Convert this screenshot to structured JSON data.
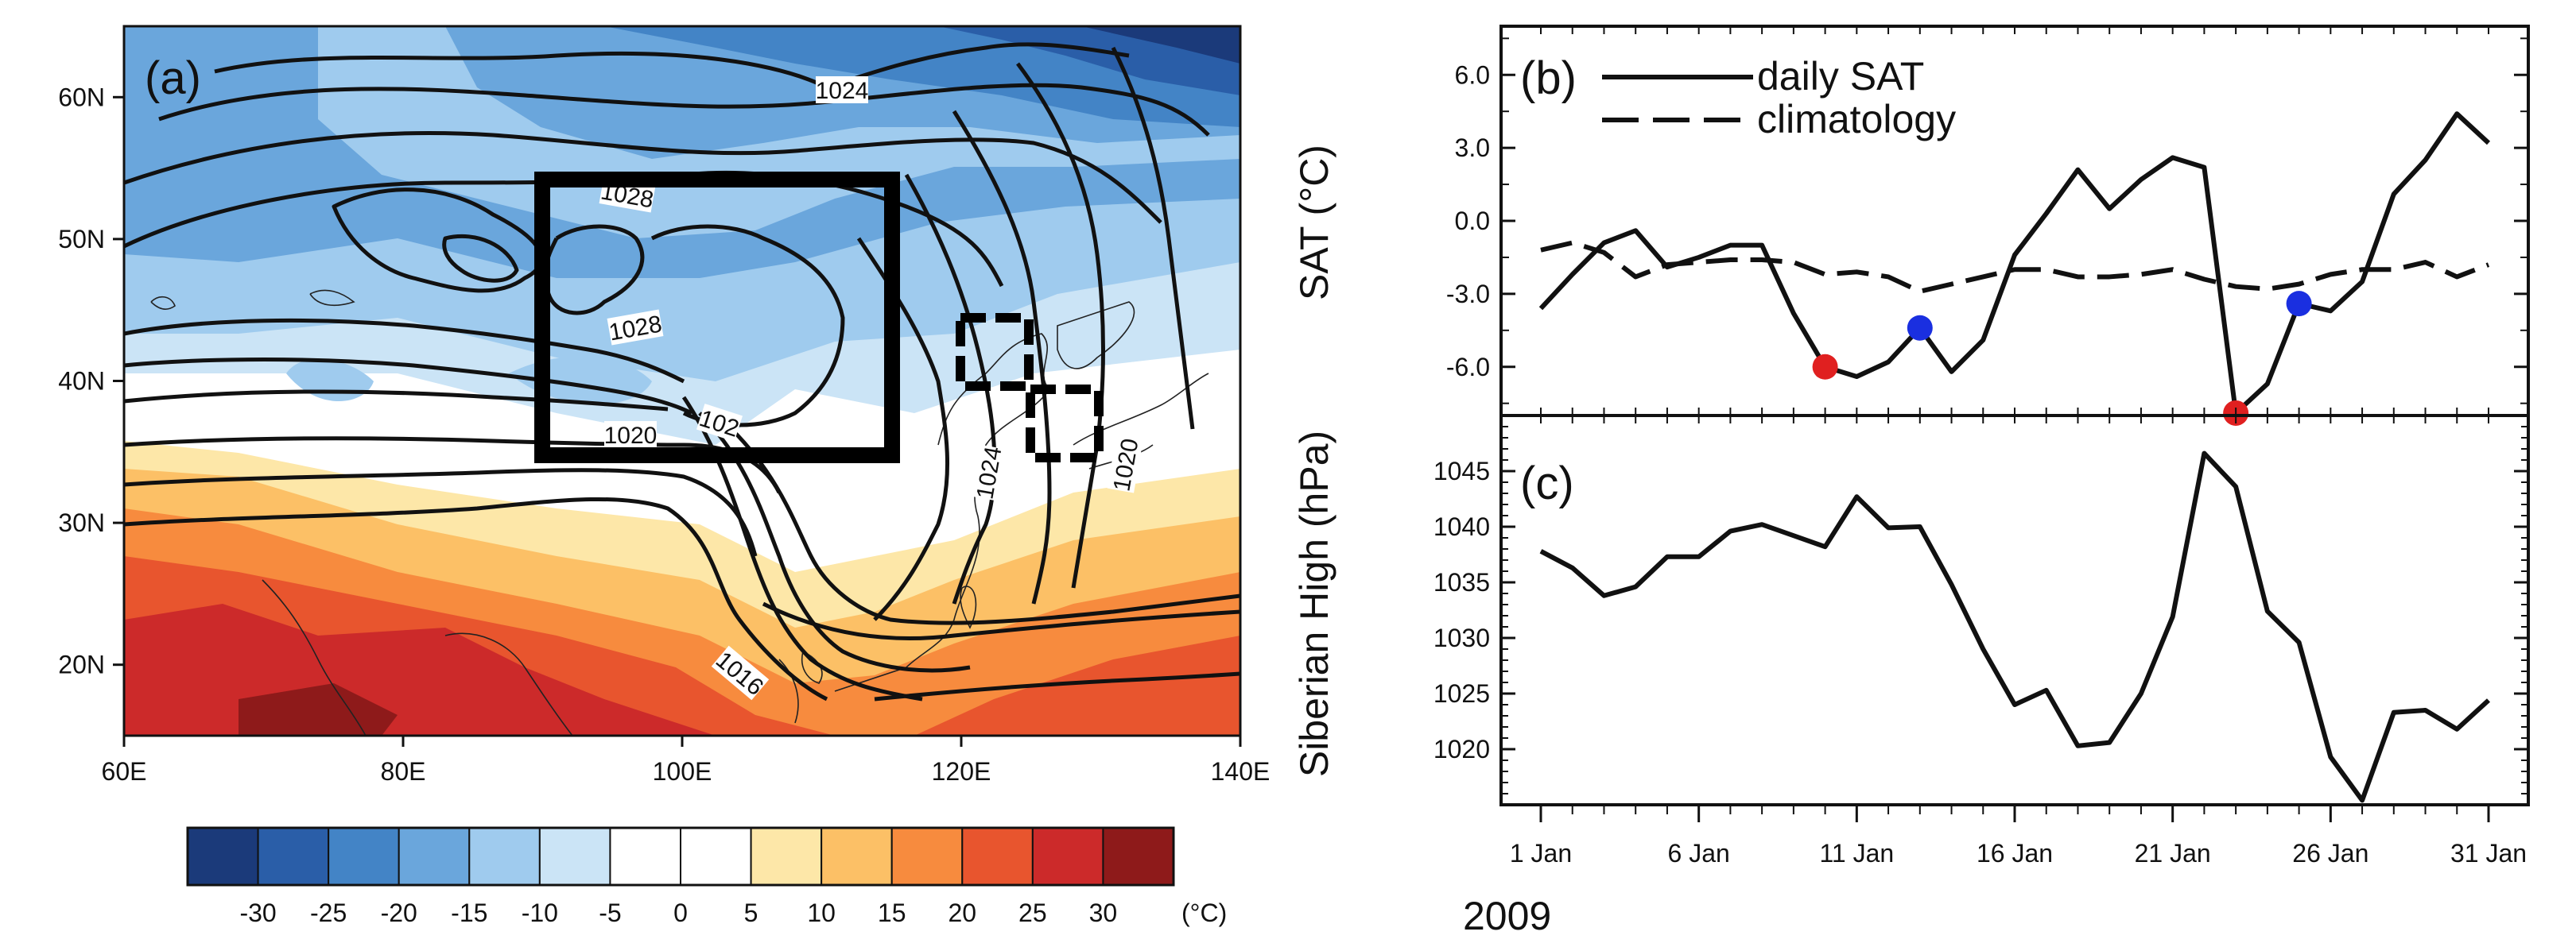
{
  "chart_data": [
    {
      "type": "heatmap",
      "panel_label": "(a)",
      "x_ticks": [
        "60E",
        "80E",
        "100E",
        "120E",
        "140E"
      ],
      "y_ticks": [
        "60N",
        "50N",
        "40N",
        "30N",
        "20N"
      ],
      "xlim": [
        60,
        140
      ],
      "ylim": [
        15,
        65
      ],
      "contour_labels": [
        "1024",
        "1028",
        "1028",
        "1020",
        "102",
        "1024",
        "1020",
        "1016"
      ],
      "colorbar": {
        "tick_labels": [
          "-30",
          "-25",
          "-20",
          "-15",
          "-10",
          "-5",
          "0",
          "5",
          "10",
          "15",
          "20",
          "25",
          "30"
        ],
        "unit": "(°C)",
        "colors": [
          "#1b3a7a",
          "#2a5ea8",
          "#4384c6",
          "#6aa6dc",
          "#9fcbee",
          "#cbe4f6",
          "#ffffff",
          "#ffffff",
          "#fde7a8",
          "#fcc066",
          "#f78b3e",
          "#e8552e",
          "#cc2a2a",
          "#8e1a1a"
        ]
      },
      "regions": [
        {
          "name": "main box",
          "lon": [
            90,
            115
          ],
          "lat": [
            35,
            55
          ],
          "style": "solid"
        },
        {
          "name": "box 2",
          "lon": [
            120,
            125
          ],
          "lat": [
            40,
            45
          ],
          "style": "dashed"
        },
        {
          "name": "box 3",
          "lon": [
            125,
            130
          ],
          "lat": [
            35,
            40
          ],
          "style": "dashed"
        }
      ]
    },
    {
      "type": "line",
      "panel_label": "(b)",
      "ylabel": "SAT (°C)",
      "y_ticks": [
        "6.0",
        "3.0",
        "0.0",
        "-3.0",
        "-6.0"
      ],
      "ylim": [
        -8,
        8
      ],
      "x": [
        1,
        2,
        3,
        4,
        5,
        6,
        7,
        8,
        9,
        10,
        11,
        12,
        13,
        14,
        15,
        16,
        17,
        18,
        19,
        20,
        21,
        22,
        23,
        24,
        25,
        26,
        27,
        28,
        29,
        30,
        31
      ],
      "series": [
        {
          "name": "daily SAT",
          "style": "solid",
          "values": [
            -3.6,
            -2.2,
            -0.9,
            -0.4,
            -1.9,
            -1.5,
            -1.0,
            -1.0,
            -3.8,
            -6.0,
            -6.4,
            -5.8,
            -4.4,
            -6.2,
            -4.9,
            -1.4,
            0.3,
            2.1,
            0.5,
            1.7,
            2.6,
            2.2,
            -7.9,
            -6.7,
            -3.4,
            -3.7,
            -2.5,
            1.1,
            2.5,
            4.4,
            3.2
          ]
        },
        {
          "name": "climatology",
          "style": "dashed",
          "values": [
            -1.2,
            -0.9,
            -1.3,
            -2.3,
            -1.8,
            -1.7,
            -1.6,
            -1.6,
            -1.7,
            -2.2,
            -2.1,
            -2.3,
            -2.9,
            -2.6,
            -2.3,
            -2.0,
            -2.0,
            -2.3,
            -2.3,
            -2.2,
            -2.0,
            -2.4,
            -2.7,
            -2.8,
            -2.6,
            -2.2,
            -2.0,
            -2.0,
            -1.7,
            -2.3,
            -1.8
          ]
        }
      ],
      "markers": [
        {
          "day": 10,
          "value": -6.0,
          "color": "#e02020"
        },
        {
          "day": 13,
          "value": -4.4,
          "color": "#1a2fe0"
        },
        {
          "day": 23,
          "value": -7.9,
          "color": "#e02020"
        },
        {
          "day": 25,
          "value": -3.4,
          "color": "#1a2fe0"
        }
      ]
    },
    {
      "type": "line",
      "panel_label": "(c)",
      "ylabel": "Siberian High (hPa)",
      "y_ticks": [
        "1045",
        "1040",
        "1035",
        "1030",
        "1025",
        "1020"
      ],
      "ylim": [
        1015,
        1050
      ],
      "x": [
        1,
        2,
        3,
        4,
        5,
        6,
        7,
        8,
        9,
        10,
        11,
        12,
        13,
        14,
        15,
        16,
        17,
        18,
        19,
        20,
        21,
        22,
        23,
        24,
        25,
        26,
        27,
        28,
        29,
        30,
        31
      ],
      "x_tick_labels": [
        "1 Jan",
        "6 Jan",
        "11 Jan",
        "16 Jan",
        "21 Jan",
        "26 Jan",
        "31 Jan"
      ],
      "x_tick_days": [
        1,
        6,
        11,
        16,
        21,
        26,
        31
      ],
      "year_label": "2009",
      "series": [
        {
          "name": "Siberian High",
          "style": "solid",
          "values": [
            1037.8,
            1036.3,
            1033.8,
            1034.6,
            1037.3,
            1037.3,
            1039.6,
            1040.2,
            1039.2,
            1038.2,
            1042.7,
            1039.9,
            1040.0,
            1034.8,
            1029.0,
            1024.0,
            1025.3,
            1020.3,
            1020.6,
            1025.0,
            1031.9,
            1046.6,
            1043.6,
            1032.4,
            1029.6,
            1019.3,
            1015.4,
            1023.3,
            1023.5,
            1021.8,
            1024.4
          ]
        }
      ]
    }
  ]
}
